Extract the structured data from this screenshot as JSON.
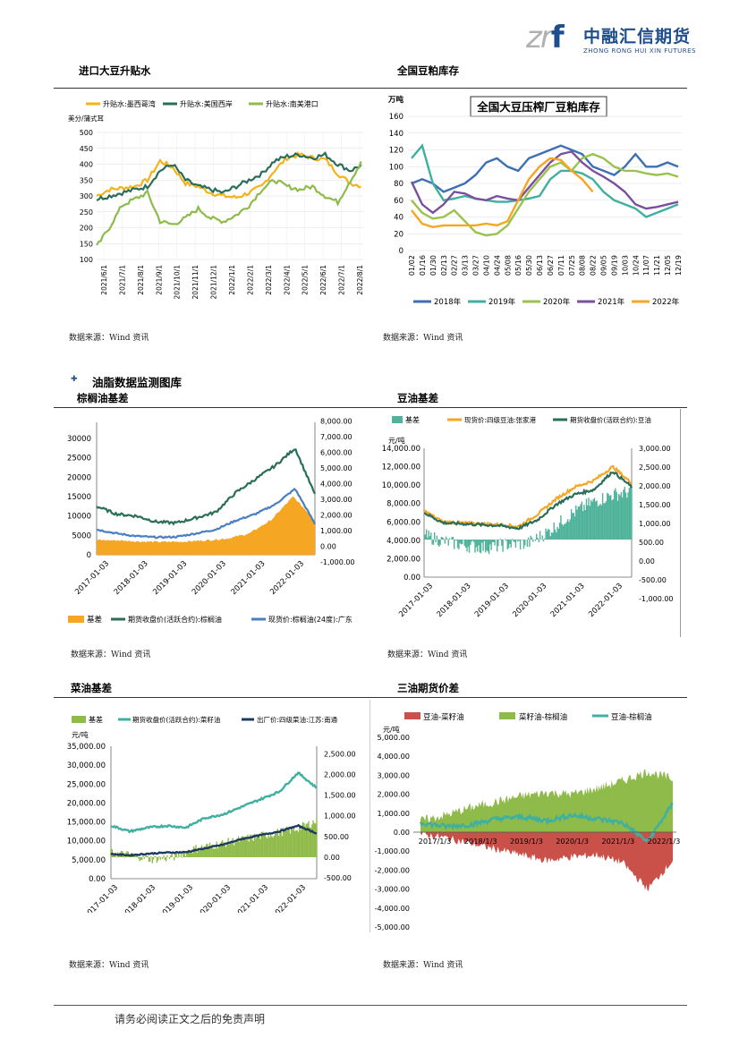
{
  "logo": {
    "mark": "zrf",
    "cn": "中融汇信期货",
    "en": "ZHONG RONG HUI XIN FUTURES"
  },
  "sections": {
    "s1_title": "进口大豆升贴水",
    "s2_title": "全国豆粕库存",
    "group_title": "油脂数据监测图库",
    "s3_title": "棕榈油基差",
    "s4_title": "豆油基差",
    "s5_title": "菜油基差",
    "s6_title": "三油期货价差"
  },
  "source_text": "数据来源：Wind 资讯",
  "footer": "请务必阅读正文之后的免责声明",
  "chart_data": [
    {
      "type": "line",
      "id": "soy-premium",
      "ylabel": "美分/蒲式耳",
      "ylim": [
        100,
        500
      ],
      "yticks": [
        "100",
        "150",
        "200",
        "250",
        "300",
        "350",
        "400",
        "450",
        "500"
      ],
      "xticks": [
        "2021/6/1",
        "2021/7/1",
        "2021/8/1",
        "2021/9/1",
        "2021/10/1",
        "2021/11/1",
        "2021/12/1",
        "2022/1/1",
        "2022/2/1",
        "2022/3/1",
        "2022/4/1",
        "2022/5/1",
        "2022/6/1",
        "2022/7/1",
        "2022/8/1"
      ],
      "series": [
        {
          "name": "升贴水:墨西哥湾",
          "color": "#f5b21a",
          "values": [
            300,
            320,
            325,
            330,
            350,
            410,
            390,
            340,
            330,
            310,
            300,
            295,
            310,
            330,
            380,
            420,
            430,
            420,
            415,
            370,
            340,
            330
          ]
        },
        {
          "name": "升贴水:美国西岸",
          "color": "#2a6e5a",
          "values": [
            290,
            300,
            310,
            320,
            330,
            380,
            400,
            350,
            330,
            320,
            310,
            330,
            350,
            370,
            410,
            425,
            430,
            420,
            430,
            400,
            380,
            400
          ]
        },
        {
          "name": "升贴水:南美港口",
          "color": "#8fbb4a",
          "values": [
            140,
            200,
            270,
            290,
            310,
            220,
            210,
            230,
            260,
            230,
            220,
            240,
            270,
            320,
            350,
            330,
            320,
            330,
            300,
            280,
            350,
            415
          ]
        }
      ]
    },
    {
      "type": "line",
      "id": "meal-stock",
      "title": "全国大豆压榨厂豆粕库存",
      "ylabel": "万吨",
      "ylim": [
        0,
        160
      ],
      "yticks": [
        "0",
        "20",
        "40",
        "60",
        "80",
        "100",
        "120",
        "140",
        "160"
      ],
      "xticks": [
        "01/02",
        "01/16",
        "01/30",
        "02/13",
        "02/27",
        "03/13",
        "03/27",
        "04/10",
        "04/24",
        "05/08",
        "05/16",
        "05/30",
        "06/13",
        "06/27",
        "07/11",
        "07/25",
        "08/08",
        "08/22",
        "09/05",
        "09/19",
        "10/03",
        "10/24",
        "11/07",
        "11/21",
        "12/05",
        "12/19"
      ],
      "series": [
        {
          "name": "2018年",
          "color": "#3d6fb5",
          "values": [
            80,
            85,
            80,
            70,
            75,
            80,
            90,
            105,
            110,
            100,
            95,
            110,
            115,
            120,
            125,
            120,
            115,
            100,
            95,
            90,
            100,
            115,
            100,
            100,
            105,
            100
          ]
        },
        {
          "name": "2019年",
          "color": "#3fb0a0",
          "values": [
            110,
            125,
            80,
            60,
            62,
            65,
            62,
            60,
            58,
            58,
            60,
            62,
            65,
            85,
            95,
            95,
            92,
            85,
            70,
            60,
            55,
            50,
            40,
            45,
            50,
            55
          ]
        },
        {
          "name": "2020年",
          "color": "#9bc24a",
          "values": [
            60,
            45,
            38,
            40,
            48,
            35,
            22,
            18,
            20,
            30,
            50,
            70,
            85,
            100,
            105,
            95,
            110,
            115,
            110,
            100,
            95,
            95,
            92,
            90,
            92,
            88
          ]
        },
        {
          "name": "2021年",
          "color": "#7b4fa0",
          "values": [
            82,
            55,
            45,
            55,
            70,
            68,
            62,
            60,
            65,
            62,
            60,
            75,
            90,
            105,
            115,
            118,
            105,
            95,
            88,
            80,
            70,
            55,
            50,
            52,
            55,
            58
          ]
        },
        {
          "name": "2022年",
          "color": "#f5a623",
          "values": [
            48,
            32,
            28,
            30,
            30,
            30,
            30,
            32,
            30,
            35,
            60,
            85,
            100,
            110,
            108,
            95,
            85,
            70
          ]
        }
      ]
    },
    {
      "type": "area",
      "id": "palm-basis",
      "yticks_left": [
        "0",
        "5000",
        "10000",
        "15000",
        "20000",
        "25000",
        "30000"
      ],
      "yticks_right": [
        "-1,000.00",
        "0.00",
        "1,000.00",
        "2,000.00",
        "3,000.00",
        "4,000.00",
        "5,000.00",
        "6,000.00",
        "7,000.00",
        "8,000.00"
      ],
      "xticks": [
        "2017-01-03",
        "2018-01-03",
        "2019-01-03",
        "2020-01-03",
        "2021-01-03",
        "2022-01-03"
      ],
      "series": [
        {
          "name": "基差",
          "color": "#f5a623"
        },
        {
          "name": "期货收盘价(活跃合约):棕榈油",
          "color": "#2a6e5a"
        },
        {
          "name": "现货价:棕榈油(24度):广东",
          "color": "#4a7fc1"
        }
      ]
    },
    {
      "type": "area",
      "id": "soyoil-basis",
      "ylabel": "元/吨",
      "yticks_left": [
        "0.00",
        "2,000.00",
        "4,000.00",
        "6,000.00",
        "8,000.00",
        "10,000.00",
        "12,000.00",
        "14,000.00"
      ],
      "yticks_right": [
        "-1,000.00",
        "-500.00",
        "0.00",
        "500.00",
        "1,000.00",
        "1,500.00",
        "2,000.00",
        "2,500.00",
        "3,000.00"
      ],
      "xticks": [
        "2017-01-03",
        "2018-01-03",
        "2019-01-03",
        "2020-01-03",
        "2021-01-03",
        "2022-01-03"
      ],
      "series": [
        {
          "name": "基差",
          "color": "#4fb39b"
        },
        {
          "name": "现货价:四级豆油:张家港",
          "color": "#f5a623"
        },
        {
          "name": "期货收盘价(活跃合约):豆油",
          "color": "#2a6e5a"
        }
      ]
    },
    {
      "type": "area",
      "id": "rapeoil-basis",
      "ylabel": "元/吨",
      "yticks_left": [
        "0.00",
        "5,000.00",
        "10,000.00",
        "15,000.00",
        "20,000.00",
        "25,000.00",
        "30,000.00",
        "35,000.00"
      ],
      "yticks_right": [
        "-500.00",
        "0.00",
        "500.00",
        "1,000.00",
        "1,500.00",
        "2,000.00",
        "2,500.00"
      ],
      "xticks": [
        "2017-01-03",
        "2018-01-03",
        "2019-01-03",
        "2020-01-03",
        "2021-01-03",
        "2022-01-03"
      ],
      "series": [
        {
          "name": "基差",
          "color": "#8fbb4a"
        },
        {
          "name": "期货收盘价(活跃合约):菜籽油",
          "color": "#3fb0a0"
        },
        {
          "name": "出厂价:四级菜油:江苏:南通",
          "color": "#1f3a5f"
        }
      ]
    },
    {
      "type": "area",
      "id": "three-oil-spread",
      "ylabel": "元/吨",
      "yticks": [
        "-5,000.00",
        "-4,000.00",
        "-3,000.00",
        "-2,000.00",
        "-1,000.00",
        "0.00",
        "1,000.00",
        "2,000.00",
        "3,000.00",
        "4,000.00",
        "5,000.00"
      ],
      "xticks": [
        "2017/1/3",
        "2018/1/3",
        "2019/1/3",
        "2020/1/3",
        "2021/1/3",
        "2022/1/3"
      ],
      "series": [
        {
          "name": "豆油-菜籽油",
          "color": "#c9514a"
        },
        {
          "name": "菜籽油-棕榈油",
          "color": "#8fbb4a"
        },
        {
          "name": "豆油-棕榈油",
          "color": "#3fb0a0"
        }
      ]
    }
  ]
}
